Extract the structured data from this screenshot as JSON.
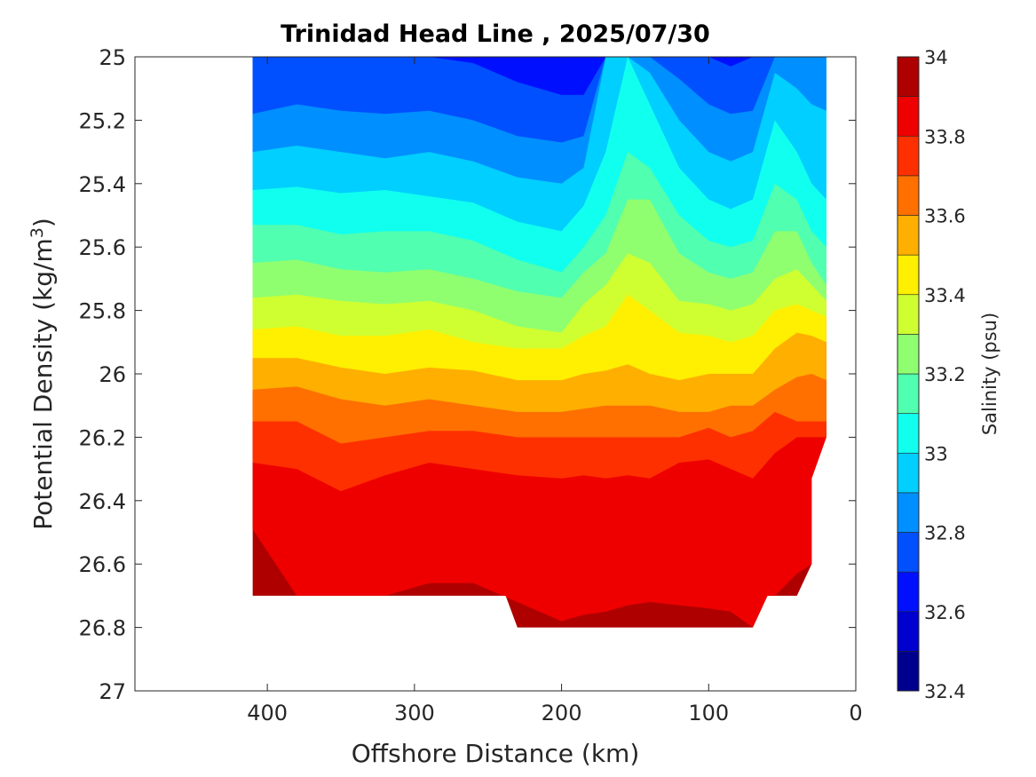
{
  "chart_data": {
    "type": "contour",
    "title": "Trinidad Head Line , 2025/07/30",
    "xlabel": "Offshore Distance (km)",
    "ylabel": {
      "main": "Potential Density (kg/m",
      "sup": "3",
      "end": ")"
    },
    "xlim": [
      490,
      0
    ],
    "ylim": [
      25,
      27
    ],
    "y_reversed": true,
    "x_reversed": true,
    "xticks": [
      400,
      300,
      200,
      100,
      0
    ],
    "xtick_labels": [
      "400",
      "300",
      "200",
      "100",
      "0"
    ],
    "yticks": [
      25,
      25.2,
      25.4,
      25.6,
      25.8,
      26,
      26.2,
      26.4,
      26.6,
      26.8,
      27
    ],
    "ytick_labels": [
      "25",
      "25.2",
      "25.4",
      "25.6",
      "25.8",
      "26",
      "26.2",
      "26.4",
      "26.6",
      "26.8",
      "27"
    ],
    "colorbar": {
      "label": "Salinity (psu)",
      "range": [
        32.4,
        34
      ],
      "ticks": [
        34,
        33.8,
        33.6,
        33.4,
        33.2,
        33,
        32.8,
        32.6,
        32.4
      ],
      "tick_labels": [
        "34",
        "33.8",
        "33.6",
        "33.4",
        "33.2",
        "33",
        "32.8",
        "32.6",
        "32.4"
      ],
      "bands": [
        {
          "range": [
            32.4,
            32.5
          ],
          "color": "#00008f"
        },
        {
          "range": [
            32.5,
            32.6
          ],
          "color": "#0000cf"
        },
        {
          "range": [
            32.6,
            32.7
          ],
          "color": "#0010ff"
        },
        {
          "range": [
            32.7,
            32.8
          ],
          "color": "#0050ff"
        },
        {
          "range": [
            32.8,
            32.9
          ],
          "color": "#008fff"
        },
        {
          "range": [
            32.9,
            33.0
          ],
          "color": "#00cfff"
        },
        {
          "range": [
            33.0,
            33.1
          ],
          "color": "#10ffef"
        },
        {
          "range": [
            33.1,
            33.2
          ],
          "color": "#50ffaf"
        },
        {
          "range": [
            33.2,
            33.3
          ],
          "color": "#8fff70"
        },
        {
          "range": [
            33.3,
            33.4
          ],
          "color": "#cfff30"
        },
        {
          "range": [
            33.4,
            33.5
          ],
          "color": "#ffef00"
        },
        {
          "range": [
            33.5,
            33.6
          ],
          "color": "#ffaf00"
        },
        {
          "range": [
            33.6,
            33.7
          ],
          "color": "#ff7000"
        },
        {
          "range": [
            33.7,
            33.8
          ],
          "color": "#ff3000"
        },
        {
          "range": [
            33.8,
            33.9
          ],
          "color": "#ef0000"
        },
        {
          "range": [
            33.9,
            34.0
          ],
          "color": "#af0000"
        }
      ]
    },
    "data_region_km_density": [
      [
        410,
        25
      ],
      [
        20,
        25
      ],
      [
        20,
        26.2
      ],
      [
        30,
        26.33
      ],
      [
        30,
        26.6
      ],
      [
        40,
        26.7
      ],
      [
        60,
        26.7
      ],
      [
        70,
        26.8
      ],
      [
        230,
        26.8
      ],
      [
        238,
        26.7
      ],
      [
        410,
        26.7
      ]
    ],
    "x_km": [
      410,
      380,
      350,
      320,
      290,
      260,
      230,
      200,
      185,
      170,
      155,
      140,
      120,
      100,
      85,
      70,
      55,
      40,
      30,
      20
    ],
    "contours": [
      {
        "level": 33.9,
        "density": [
          26.49,
          26.7,
          26.7,
          26.7,
          26.66,
          26.66,
          26.72,
          26.78,
          26.76,
          26.75,
          26.73,
          26.72,
          26.73,
          26.74,
          26.75,
          26.8,
          26.7,
          26.63,
          26.6,
          26.6
        ]
      },
      {
        "level": 33.8,
        "density": [
          26.28,
          26.3,
          26.37,
          26.32,
          26.28,
          26.3,
          26.32,
          26.33,
          26.32,
          26.33,
          26.32,
          26.33,
          26.28,
          26.27,
          26.3,
          26.33,
          26.25,
          26.2,
          26.2,
          26.2
        ]
      },
      {
        "level": 33.7,
        "density": [
          26.15,
          26.15,
          26.22,
          26.2,
          26.18,
          26.18,
          26.2,
          26.2,
          26.2,
          26.2,
          26.2,
          26.2,
          26.2,
          26.17,
          26.2,
          26.18,
          26.12,
          26.15,
          26.15,
          26.15
        ]
      },
      {
        "level": 33.6,
        "density": [
          26.05,
          26.04,
          26.08,
          26.1,
          26.08,
          26.1,
          26.12,
          26.12,
          26.11,
          26.1,
          26.1,
          26.1,
          26.12,
          26.12,
          26.1,
          26.1,
          26.05,
          26.01,
          26.0,
          26.02
        ]
      },
      {
        "level": 33.5,
        "density": [
          25.95,
          25.95,
          25.98,
          26.0,
          25.98,
          25.99,
          26.02,
          26.02,
          26.0,
          25.99,
          25.97,
          26.0,
          26.02,
          26.0,
          26.0,
          26.0,
          25.92,
          25.87,
          25.88,
          25.9
        ]
      },
      {
        "level": 33.4,
        "density": [
          25.86,
          25.85,
          25.88,
          25.88,
          25.86,
          25.9,
          25.92,
          25.92,
          25.88,
          25.85,
          25.75,
          25.8,
          25.87,
          25.88,
          25.9,
          25.88,
          25.8,
          25.78,
          25.8,
          25.82
        ]
      },
      {
        "level": 33.3,
        "density": [
          25.76,
          25.75,
          25.77,
          25.78,
          25.77,
          25.8,
          25.85,
          25.87,
          25.78,
          25.72,
          25.62,
          25.65,
          25.77,
          25.78,
          25.8,
          25.78,
          25.7,
          25.67,
          25.72,
          25.77
        ]
      },
      {
        "level": 33.2,
        "density": [
          25.65,
          25.64,
          25.67,
          25.68,
          25.67,
          25.7,
          25.74,
          25.76,
          25.68,
          25.62,
          25.45,
          25.45,
          25.62,
          25.68,
          25.7,
          25.68,
          25.55,
          25.55,
          25.65,
          25.72
        ]
      },
      {
        "level": 33.1,
        "density": [
          25.53,
          25.53,
          25.56,
          25.55,
          25.55,
          25.58,
          25.64,
          25.68,
          25.6,
          25.5,
          25.3,
          25.35,
          25.5,
          25.58,
          25.6,
          25.58,
          25.4,
          25.45,
          25.55,
          25.6
        ]
      },
      {
        "level": 33.0,
        "density": [
          25.42,
          25.41,
          25.43,
          25.42,
          25.44,
          25.46,
          25.52,
          25.55,
          25.47,
          25.3,
          25.0,
          25.15,
          25.35,
          25.45,
          25.48,
          25.45,
          25.2,
          25.3,
          25.4,
          25.45
        ]
      },
      {
        "level": 32.9,
        "density": [
          25.3,
          25.28,
          25.3,
          25.32,
          25.3,
          25.33,
          25.38,
          25.4,
          25.35,
          25.0,
          25.0,
          25.05,
          25.2,
          25.3,
          25.33,
          25.3,
          25.05,
          25.1,
          25.15,
          25.17
        ]
      },
      {
        "level": 32.8,
        "density": [
          25.18,
          25.15,
          25.17,
          25.18,
          25.17,
          25.2,
          25.25,
          25.27,
          25.25,
          25.0,
          25.0,
          25.0,
          25.07,
          25.15,
          25.18,
          25.17,
          25.0,
          25.0,
          25.0,
          25.0
        ]
      },
      {
        "level": 32.7,
        "density": [
          25.0,
          25.0,
          25.0,
          25.0,
          25.0,
          25.02,
          25.08,
          25.12,
          25.12,
          25.0,
          25.0,
          25.0,
          25.0,
          25.0,
          25.03,
          25.0,
          25.0,
          25.0,
          25.0,
          25.0
        ]
      }
    ]
  }
}
